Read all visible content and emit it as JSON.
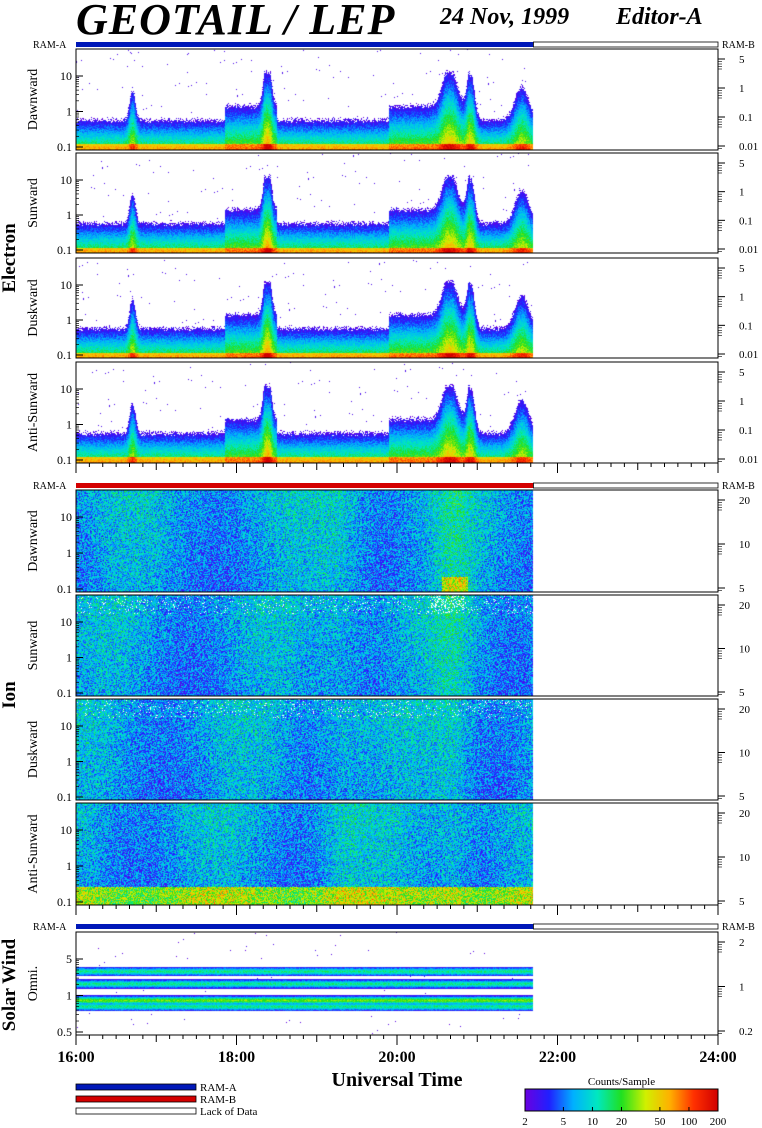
{
  "header": {
    "title": "GEOTAIL / LEP",
    "date": "24 Nov, 1999",
    "editor": "Editor-A"
  },
  "ram_a_label": "RAM-A",
  "ram_b_label": "RAM-B",
  "legend": {
    "items": [
      {
        "label": "RAM-A",
        "color": "#0018b8"
      },
      {
        "label": "RAM-B",
        "color": "#d40000"
      },
      {
        "label": "Lack of Data",
        "color": "#ffffff"
      }
    ]
  },
  "colorbar": {
    "title": "Counts/Sample",
    "ticks": [
      "2",
      "5",
      "10",
      "20",
      "50",
      "100",
      "200"
    ],
    "colors": [
      "#6a00e0",
      "#2020ff",
      "#00b0ff",
      "#00e8c0",
      "#20e020",
      "#d0f000",
      "#ffb000",
      "#ff3000",
      "#d00000"
    ]
  },
  "chart_data": {
    "type": "heatmap",
    "xlabel": "Universal Time",
    "x_ticks": [
      "16:00",
      "18:00",
      "20:00",
      "22:00",
      "24:00"
    ],
    "x_range_hours": [
      16,
      24
    ],
    "data_end_hour": 21.7,
    "groups": [
      {
        "name": "Electron",
        "bar_color": "#0018b8",
        "panels": [
          {
            "label": "Dawnward",
            "left_ticks": [
              "10",
              "1",
              "0.1"
            ],
            "right_ticks": [
              "5",
              "1",
              "0.1",
              "0.01"
            ]
          },
          {
            "label": "Sunward",
            "left_ticks": [
              "10",
              "1",
              "0.1"
            ],
            "right_ticks": [
              "5",
              "1",
              "0.1",
              "0.01"
            ]
          },
          {
            "label": "Duskward",
            "left_ticks": [
              "10",
              "1",
              "0.1"
            ],
            "right_ticks": [
              "5",
              "1",
              "0.1",
              "0.01"
            ]
          },
          {
            "label": "Anti-Sunward",
            "left_ticks": [
              "10",
              "1",
              "0.1"
            ],
            "right_ticks": [
              "5",
              "1",
              "0.1",
              "0.01"
            ]
          }
        ]
      },
      {
        "name": "Ion",
        "bar_color": "#d40000",
        "panels": [
          {
            "label": "Dawnward",
            "left_ticks": [
              "10",
              "1",
              "0.1"
            ],
            "right_ticks": [
              "20",
              "10",
              "5"
            ]
          },
          {
            "label": "Sunward",
            "left_ticks": [
              "10",
              "1",
              "0.1"
            ],
            "right_ticks": [
              "20",
              "10",
              "5"
            ]
          },
          {
            "label": "Duskward",
            "left_ticks": [
              "10",
              "1",
              "0.1"
            ],
            "right_ticks": [
              "20",
              "10",
              "5"
            ]
          },
          {
            "label": "Anti-Sunward",
            "left_ticks": [
              "10",
              "1",
              "0.1"
            ],
            "right_ticks": [
              "20",
              "10",
              "5"
            ]
          }
        ]
      },
      {
        "name": "Solar Wind",
        "bar_color": "#0018b8",
        "panels": [
          {
            "label": "Omni.",
            "left_ticks": [
              "5",
              "1",
              "0.5"
            ],
            "right_ticks": [
              "2",
              "1",
              "0.2"
            ]
          }
        ]
      }
    ]
  }
}
